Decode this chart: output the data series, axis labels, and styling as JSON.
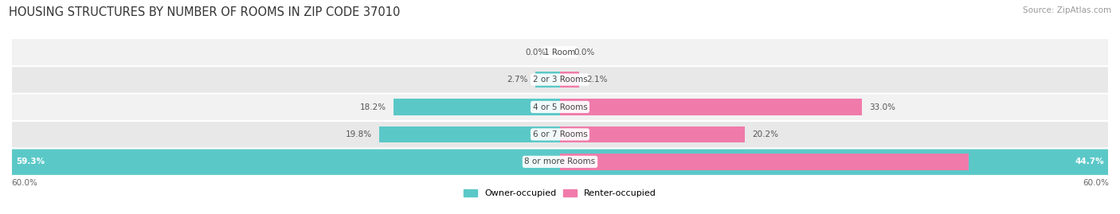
{
  "title": "HOUSING STRUCTURES BY NUMBER OF ROOMS IN ZIP CODE 37010",
  "source": "Source: ZipAtlas.com",
  "categories": [
    "1 Room",
    "2 or 3 Rooms",
    "4 or 5 Rooms",
    "6 or 7 Rooms",
    "8 or more Rooms"
  ],
  "owner_values": [
    0.0,
    2.7,
    18.2,
    19.8,
    59.3
  ],
  "renter_values": [
    0.0,
    2.1,
    33.0,
    20.2,
    44.7
  ],
  "max_value": 60.0,
  "owner_color": "#5BC8C8",
  "renter_color": "#F07BAA",
  "row_bg_colors": [
    "#F0F0F0",
    "#E6E6E6",
    "#F0F0F0",
    "#E6E6E6",
    "#5BC8C8"
  ],
  "row_bg_alpha": [
    1,
    1,
    1,
    1,
    1
  ],
  "axis_label_left": "60.0%",
  "axis_label_right": "60.0%",
  "title_fontsize": 10.5,
  "source_fontsize": 7.5,
  "bar_height": 0.6,
  "figure_width": 14.06,
  "figure_height": 2.69
}
